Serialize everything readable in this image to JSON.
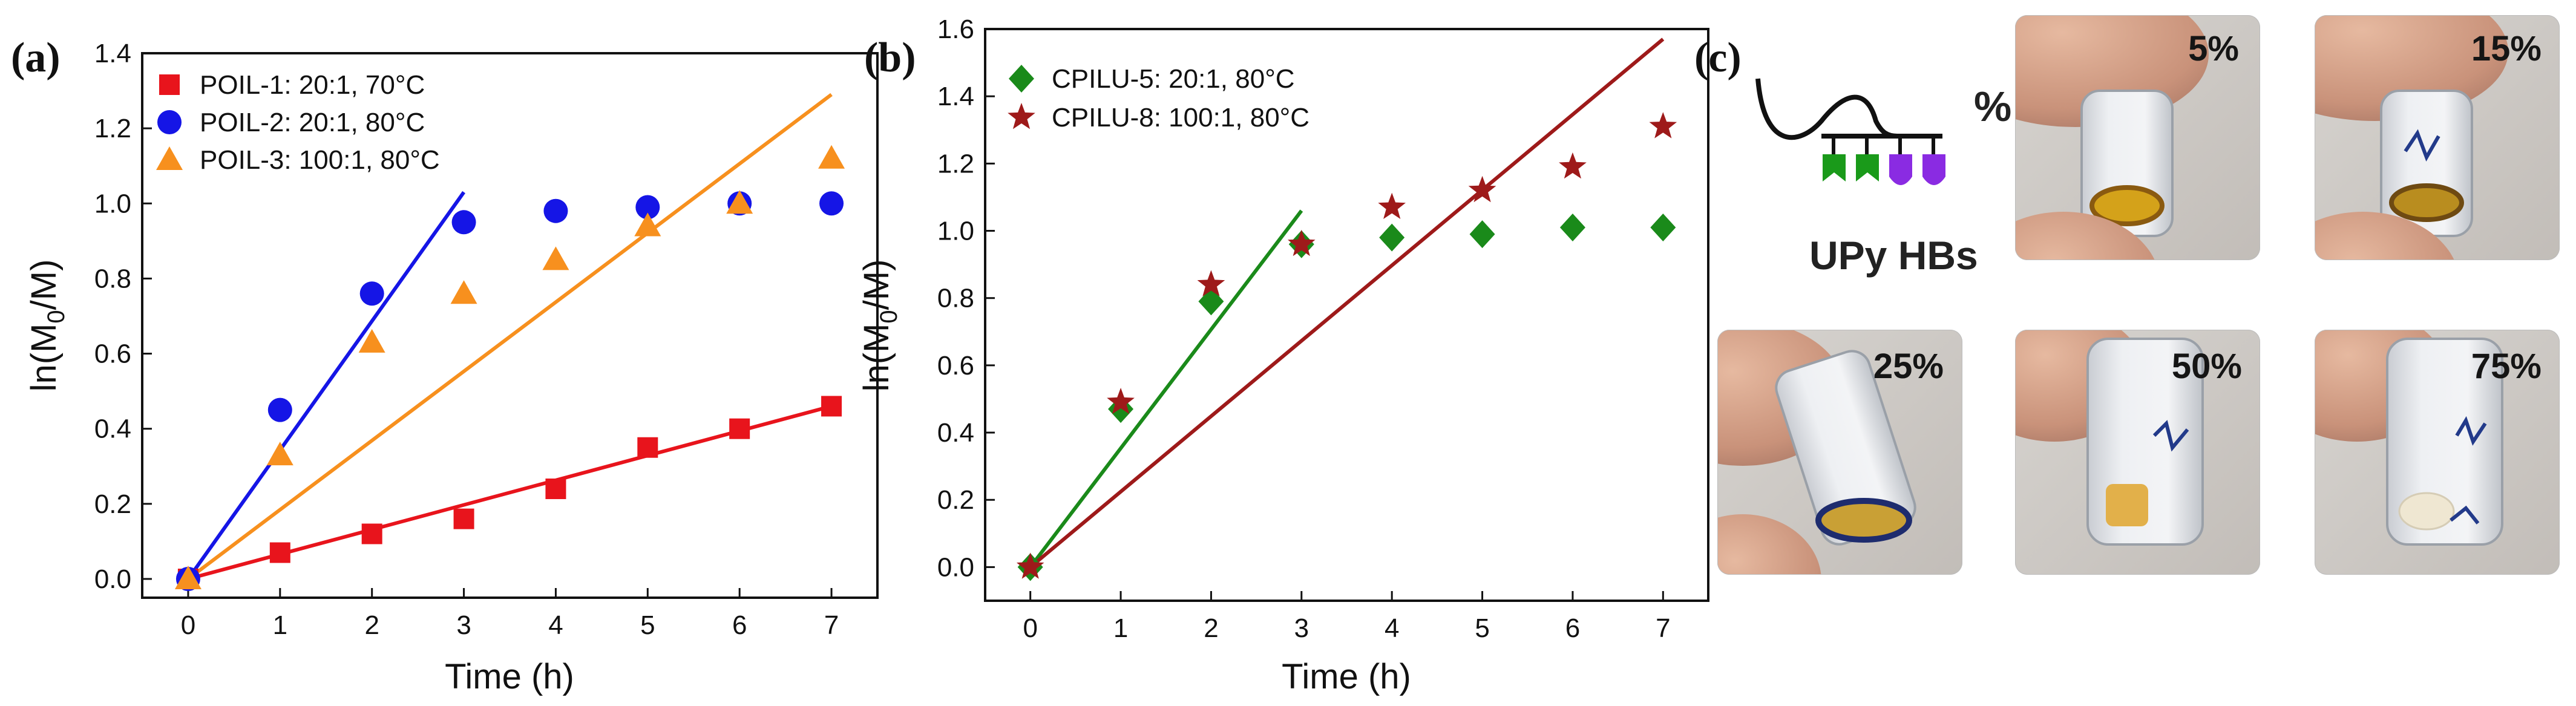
{
  "panels": {
    "a": "(a)",
    "b": "(b)",
    "c": "(c)"
  },
  "chart_data": [
    {
      "type": "scatter",
      "panel": "a",
      "title": "",
      "xlabel": "Time (h)",
      "ylabel_base": "ln(M",
      "ylabel_sub": "0",
      "ylabel_end": "/M)",
      "xlim": [
        -0.5,
        7.5
      ],
      "ylim": [
        -0.05,
        1.4
      ],
      "xticks": [
        0,
        1,
        2,
        3,
        4,
        5,
        6,
        7
      ],
      "xtick_labels": [
        "0",
        "1",
        "2",
        "3",
        "4",
        "5",
        "6",
        "7"
      ],
      "yticks": [
        0,
        0.2,
        0.4,
        0.6,
        0.8,
        1.0,
        1.2,
        1.4
      ],
      "ytick_labels": [
        "0.0",
        "0.2",
        "0.4",
        "0.6",
        "0.8",
        "1.0",
        "1.2",
        "1.4"
      ],
      "legend_position": "top-left",
      "series": [
        {
          "name": "POIL-1: 20:1, 70°C",
          "marker": "square",
          "color": "#e8141c",
          "x": [
            0,
            1,
            2,
            3,
            4,
            5,
            6,
            7
          ],
          "y": [
            0.0,
            0.07,
            0.12,
            0.16,
            0.24,
            0.35,
            0.4,
            0.46
          ],
          "fit": {
            "x": [
              0,
              7
            ],
            "y": [
              0.0,
              0.46
            ]
          }
        },
        {
          "name": "POIL-2: 20:1, 80°C",
          "marker": "circle",
          "color": "#1515e6",
          "x": [
            0,
            1,
            2,
            3,
            4,
            5,
            6,
            7
          ],
          "y": [
            0.0,
            0.45,
            0.76,
            0.95,
            0.98,
            0.99,
            1.0,
            1.0
          ],
          "fit": {
            "x": [
              0,
              3
            ],
            "y": [
              0.0,
              1.03
            ]
          }
        },
        {
          "name": "POIL-3: 100:1, 80°C",
          "marker": "triangle",
          "color": "#f7901e",
          "x": [
            0,
            1,
            2,
            3,
            4,
            5,
            6,
            7
          ],
          "y": [
            0.0,
            0.33,
            0.63,
            0.76,
            0.85,
            0.94,
            1.0,
            1.12
          ],
          "fit": {
            "x": [
              0,
              7
            ],
            "y": [
              0.0,
              1.29
            ]
          }
        }
      ]
    },
    {
      "type": "scatter",
      "panel": "b",
      "title": "",
      "xlabel": "Time (h)",
      "ylabel_base": "ln(M",
      "ylabel_sub": "0",
      "ylabel_end": "/M)",
      "xlim": [
        -0.5,
        7.5
      ],
      "ylim": [
        -0.1,
        1.6
      ],
      "xticks": [
        0,
        1,
        2,
        3,
        4,
        5,
        6,
        7
      ],
      "xtick_labels": [
        "0",
        "1",
        "2",
        "3",
        "4",
        "5",
        "6",
        "7"
      ],
      "yticks": [
        0,
        0.2,
        0.4,
        0.6,
        0.8,
        1.0,
        1.2,
        1.4,
        1.6
      ],
      "ytick_labels": [
        "0.0",
        "0.2",
        "0.4",
        "0.6",
        "0.8",
        "1.0",
        "1.2",
        "1.4",
        "1.6"
      ],
      "legend_position": "top-left",
      "series": [
        {
          "name": "CPILU-5: 20:1, 80°C",
          "marker": "diamond",
          "color": "#1a8a1a",
          "x": [
            0,
            1,
            2,
            3,
            4,
            5,
            6,
            7
          ],
          "y": [
            0.0,
            0.47,
            0.79,
            0.96,
            0.98,
            0.99,
            1.01,
            1.01
          ],
          "fit": {
            "x": [
              0,
              3
            ],
            "y": [
              0.0,
              1.06
            ]
          }
        },
        {
          "name": "CPILU-8: 100:1, 80°C",
          "marker": "star",
          "color": "#9e1a1a",
          "x": [
            0,
            1,
            2,
            3,
            4,
            5,
            6,
            7
          ],
          "y": [
            0.0,
            0.49,
            0.84,
            0.96,
            1.07,
            1.12,
            1.19,
            1.31
          ],
          "fit": {
            "x": [
              0,
              7
            ],
            "y": [
              0.0,
              1.57
            ]
          }
        }
      ]
    }
  ],
  "photos": {
    "schematic_caption": "UPy HBs",
    "schematic_percent": "%",
    "labels": [
      "5%",
      "15%",
      "25%",
      "50%",
      "75%"
    ]
  },
  "colors": {
    "green_block": "#1a9a1a",
    "purple_block": "#8a2be2"
  }
}
